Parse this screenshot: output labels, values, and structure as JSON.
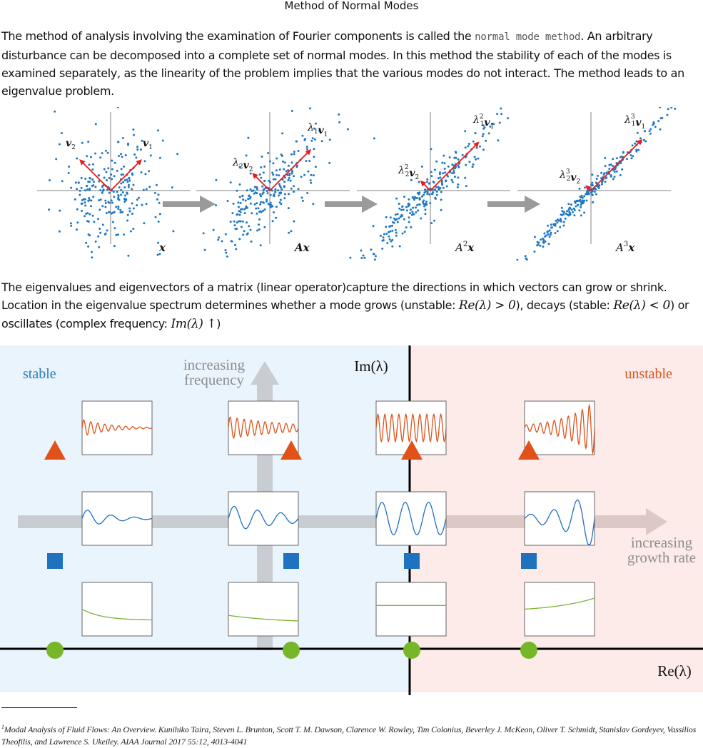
{
  "page": {
    "title": "Method of Normal Modes"
  },
  "intro": {
    "text_before": "The method of analysis involving the examination of Fourier components is called the ",
    "code_term": "normal mode method",
    "text_after": ". An arbitrary disturbance can be decomposed into a complete set of normal modes. In this method the stability of each of the modes is examined separately, as the linearity of the problem implies that the various modes do not interact. The method leads to an eigenvalue problem."
  },
  "eigen_figure": {
    "panels": [
      {
        "bottom_label": "x",
        "v1_label": "v",
        "v1_sub": "1",
        "v1_coef": "",
        "v1_pow": "",
        "v2_label": "v",
        "v2_sub": "2",
        "v2_coef": "",
        "v2_pow": ""
      },
      {
        "bottom_label": "Ax",
        "v1_coef": "λ",
        "v1_coef_sub": "1",
        "v1_pow": "",
        "v1_label": "v",
        "v1_sub": "1",
        "v2_coef": "λ",
        "v2_coef_sub": "2",
        "v2_pow": "",
        "v2_label": "v",
        "v2_sub": "2"
      },
      {
        "bottom_label": "A",
        "bottom_pow": "2",
        "bottom_var": "x",
        "v1_coef": "λ",
        "v1_coef_sub": "1",
        "v1_pow": "2",
        "v1_label": "v",
        "v1_sub": "1",
        "v2_coef": "λ",
        "v2_coef_sub": "2",
        "v2_pow": "2",
        "v2_label": "v",
        "v2_sub": "2"
      },
      {
        "bottom_label": "A",
        "bottom_pow": "3",
        "bottom_var": "x",
        "v1_coef": "λ",
        "v1_coef_sub": "1",
        "v1_pow": "3",
        "v1_label": "v",
        "v1_sub": "1",
        "v2_coef": "λ",
        "v2_coef_sub": "2",
        "v2_pow": "3",
        "v2_label": "v",
        "v2_sub": "2"
      }
    ],
    "colors": {
      "points": "#1f77c4",
      "vectors": "#e81c1c",
      "axes": "#999999",
      "arrow": "#9a9a9a"
    }
  },
  "explain": {
    "text1": "The eigenvalues and eigenvectors of a matrix (linear operator)capture the directions in which vectors can grow or shrink. Location in the eigenvalue spectrum determines whether a mode grows (unstable: ",
    "math1": "Re(λ) > 0",
    "text2": "), decays (stable: ",
    "math2": "Re(λ) < 0",
    "text3": ") or oscillates (complex frequency: ",
    "math3": "Im(λ)",
    "arrow": "↑",
    "text4": ")"
  },
  "spectrum": {
    "label_stable": "stable",
    "label_unstable": "unstable",
    "label_freq_1": "increasing",
    "label_freq_2": "frequency",
    "label_growth_1": "increasing",
    "label_growth_2": "growth rate",
    "label_im": "Im(λ)",
    "label_re": "Re(λ)",
    "colors": {
      "stable_bg": "#eaf4fc",
      "unstable_bg": "#fcebe8",
      "stable_text": "#2a7ab8",
      "unstable_text": "#d9541e",
      "triangle": "#e0521a",
      "square": "#1f72c0",
      "circle": "#76b72a",
      "osc_orange": "#e0521a",
      "osc_blue": "#1f6fc0",
      "osc_green": "#78b534"
    }
  },
  "footnote": {
    "marker": "1",
    "text": "Modal Analysis of Fluid Flows: An Overview. Kunihiko Taira, Steven L. Brunton, Scott T. M. Dawson, Clarence W. Rowley, Tim Colonius, Beverley J. McKeon, Oliver T. Schmidt, Stanislav Gordeyev, Vassilios Theofilis, and Lawrence S. Ukeiley. AIAA Journal 2017 55:12, 4013-4041"
  }
}
